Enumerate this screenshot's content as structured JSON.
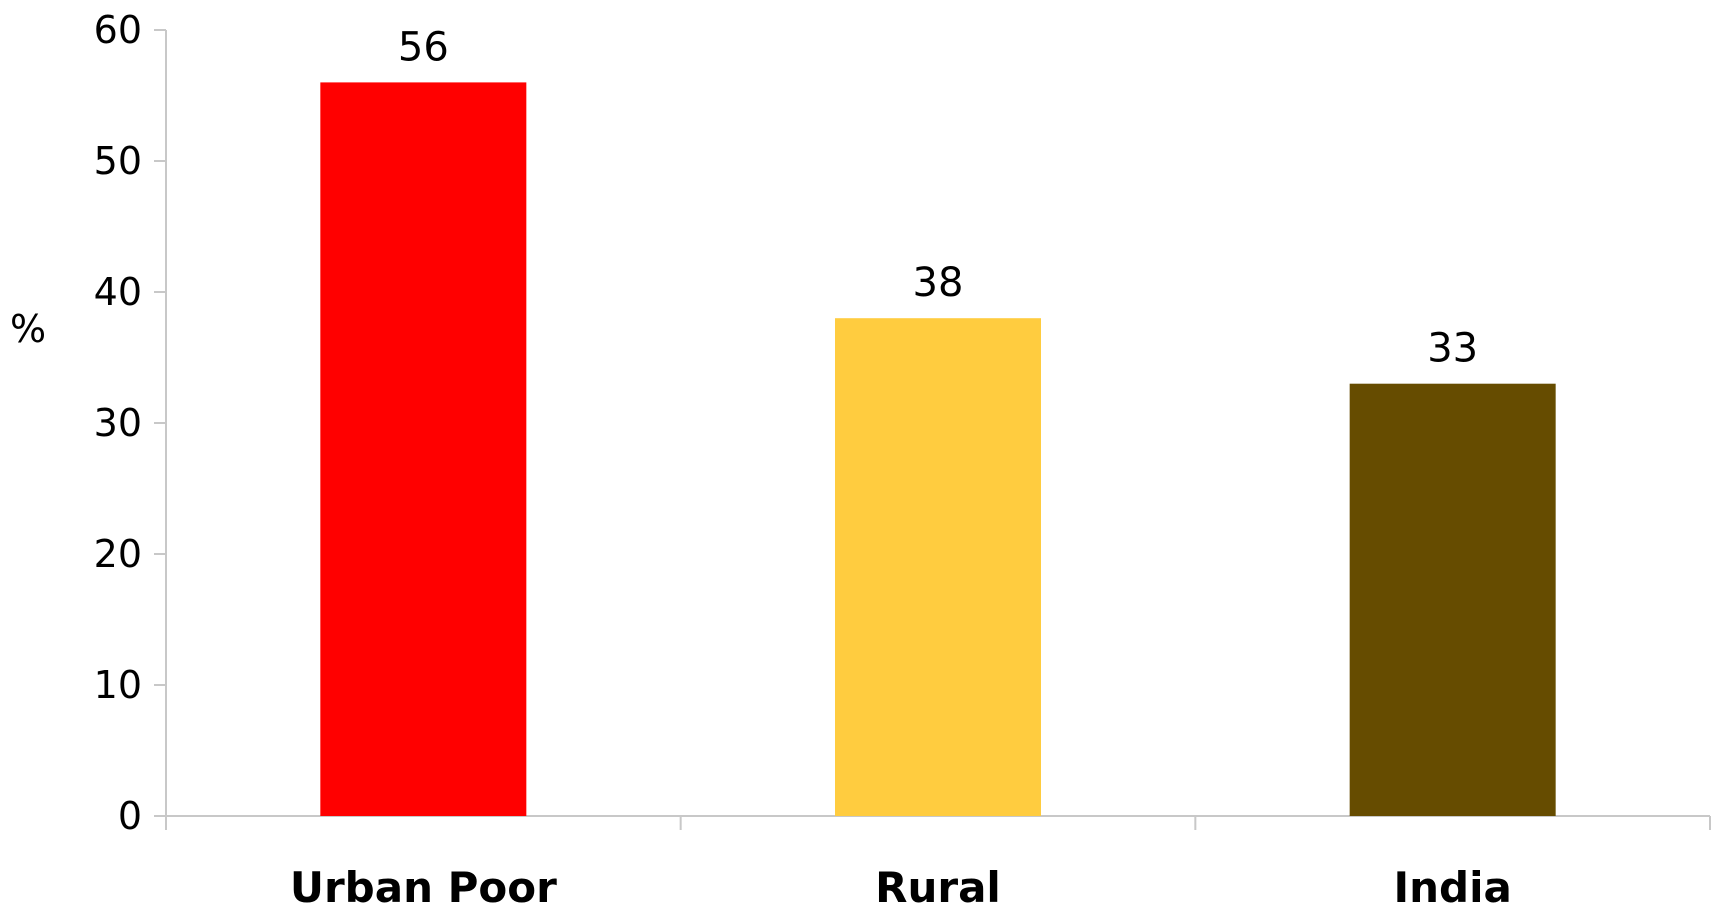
{
  "chart_data": {
    "type": "bar",
    "categories": [
      "Urban Poor",
      "Rural",
      "India"
    ],
    "values": [
      56,
      38,
      33
    ],
    "data_labels": [
      "56",
      "38",
      "33"
    ],
    "colors": [
      "#ff0000",
      "#ffcc3f",
      "#664c00"
    ],
    "title": "",
    "xlabel": "",
    "ylabel": "%",
    "ylim": [
      0,
      60
    ],
    "yticks": [
      0,
      10,
      20,
      30,
      40,
      50,
      60
    ],
    "grid": false,
    "legend": "none",
    "axis_color": "#c8c8c8"
  }
}
